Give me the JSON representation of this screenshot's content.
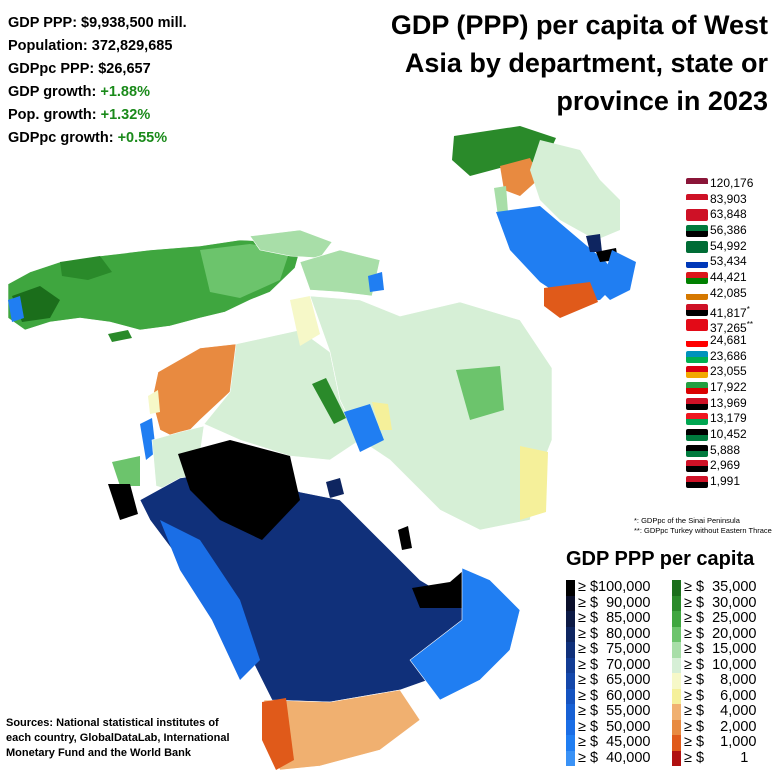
{
  "stats": {
    "gdp": "GDP PPP: $9,938,500 mill.",
    "population": "Population: 372,829,685",
    "gdppc": "GDPpc PPP: $26,657",
    "gdp_growth_label": "GDP growth: ",
    "gdp_growth_value": "+1.88%",
    "pop_growth_label": "Pop. growth: ",
    "pop_growth_value": "+1.32%",
    "gdppc_growth_label": "GDPpc growth: ",
    "gdppc_growth_value": "+0.55%"
  },
  "title": {
    "line1": "GDP (PPP) per capita of West",
    "line2": "Asia by department, state or",
    "line3": "province in 2023"
  },
  "flags": [
    {
      "value": "120,176",
      "mark": "",
      "colors": [
        "#8a1538",
        "#ffffff"
      ]
    },
    {
      "value": "83,903",
      "mark": "",
      "colors": [
        "#ce1126",
        "#ffffff"
      ]
    },
    {
      "value": "63,848",
      "mark": "",
      "colors": [
        "#ce1126",
        "#ce1126"
      ]
    },
    {
      "value": "56,386",
      "mark": "",
      "colors": [
        "#007a3d",
        "#000000"
      ]
    },
    {
      "value": "54,992",
      "mark": "",
      "colors": [
        "#006c35",
        "#006c35"
      ]
    },
    {
      "value": "53,434",
      "mark": "",
      "colors": [
        "#ffffff",
        "#0038b8"
      ]
    },
    {
      "value": "44,421",
      "mark": "",
      "colors": [
        "#db161b",
        "#008000"
      ]
    },
    {
      "value": "42,085",
      "mark": "",
      "colors": [
        "#ffffff",
        "#d57800"
      ]
    },
    {
      "value": "41,817",
      "mark": "*",
      "colors": [
        "#ce1126",
        "#000000"
      ]
    },
    {
      "value": "37,265",
      "mark": "**",
      "colors": [
        "#e30a17",
        "#e30a17"
      ]
    },
    {
      "value": "24,681",
      "mark": "",
      "colors": [
        "#ffffff",
        "#ff0000"
      ]
    },
    {
      "value": "23,686",
      "mark": "",
      "colors": [
        "#0092bc",
        "#00b050"
      ]
    },
    {
      "value": "23,055",
      "mark": "",
      "colors": [
        "#d90012",
        "#f2a800"
      ]
    },
    {
      "value": "17,922",
      "mark": "",
      "colors": [
        "#239f40",
        "#da0000"
      ]
    },
    {
      "value": "13,969",
      "mark": "",
      "colors": [
        "#ce1126",
        "#000000"
      ]
    },
    {
      "value": "13,179",
      "mark": "",
      "colors": [
        "#ee161f",
        "#00a651"
      ]
    },
    {
      "value": "10,452",
      "mark": "",
      "colors": [
        "#000000",
        "#007a3d"
      ]
    },
    {
      "value": "5,888",
      "mark": "",
      "colors": [
        "#000000",
        "#007a3d"
      ]
    },
    {
      "value": "2,969",
      "mark": "",
      "colors": [
        "#ce1126",
        "#000000"
      ]
    },
    {
      "value": "1,991",
      "mark": "",
      "colors": [
        "#ce1126",
        "#000000"
      ]
    }
  ],
  "notes": {
    "note1": "*: GDPpc of the Sinai Peninsula",
    "note2": "**: GDPpc Turkey without Eastern Thrace"
  },
  "legend": {
    "title": "GDP PPP per capita",
    "left": [
      {
        "label": "≥ $100,000",
        "color": "#000000"
      },
      {
        "label": "≥ $  90,000",
        "color": "#0a0f2a"
      },
      {
        "label": "≥ $  85,000",
        "color": "#0c1a45"
      },
      {
        "label": "≥ $  80,000",
        "color": "#0e2560"
      },
      {
        "label": "≥ $  75,000",
        "color": "#10307a"
      },
      {
        "label": "≥ $  70,000",
        "color": "#123c94"
      },
      {
        "label": "≥ $  65,000",
        "color": "#1447aa"
      },
      {
        "label": "≥ $  60,000",
        "color": "#1553c0"
      },
      {
        "label": "≥ $  55,000",
        "color": "#1760d4"
      },
      {
        "label": "≥ $  50,000",
        "color": "#1a6ee6"
      },
      {
        "label": "≥ $  45,000",
        "color": "#207ef2"
      },
      {
        "label": "≥ $  40,000",
        "color": "#3a92f6"
      }
    ],
    "right": [
      {
        "label": "≥ $  35,000",
        "color": "#1b6e1b"
      },
      {
        "label": "≥ $  30,000",
        "color": "#2a8a2a"
      },
      {
        "label": "≥ $  25,000",
        "color": "#3fa63f"
      },
      {
        "label": "≥ $  20,000",
        "color": "#6cc46c"
      },
      {
        "label": "≥ $  15,000",
        "color": "#a8dea8"
      },
      {
        "label": "≥ $  10,000",
        "color": "#d6efd6"
      },
      {
        "label": "≥ $    8,000",
        "color": "#f6f8c8"
      },
      {
        "label": "≥ $    6,000",
        "color": "#f5f09a"
      },
      {
        "label": "≥ $    4,000",
        "color": "#f0b070"
      },
      {
        "label": "≥ $    2,000",
        "color": "#e88a40"
      },
      {
        "label": "≥ $    1,000",
        "color": "#e05a1a"
      },
      {
        "label": "≥ $         1",
        "color": "#b01010"
      }
    ]
  },
  "sources": "Sources: National statistical institutes of each country, GlobalDataLab, International Monetary Fund and the World Bank"
}
